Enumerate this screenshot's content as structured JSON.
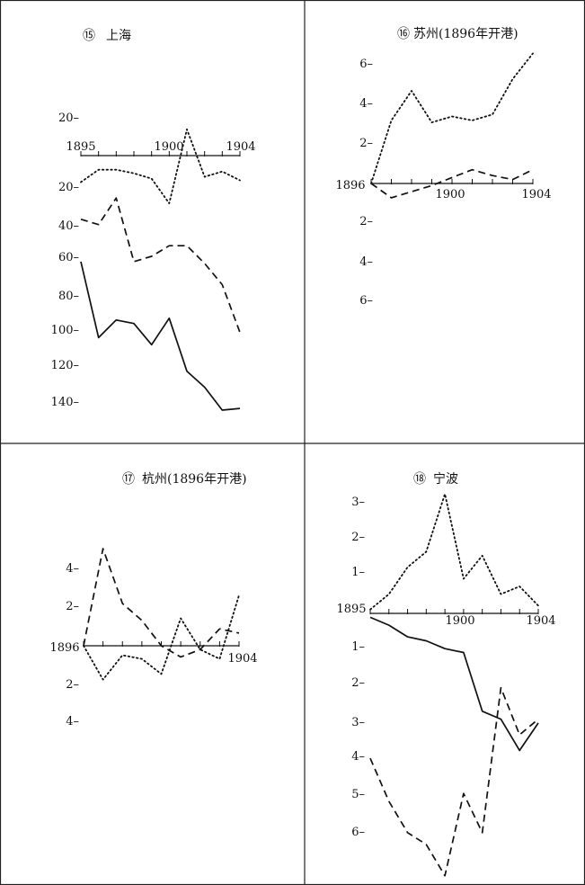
{
  "chart_data": [
    {
      "type": "line",
      "index_mark": "⑮",
      "title": "上海",
      "x_ticks": [
        "1895",
        "1900",
        "1904"
      ],
      "x": [
        1895,
        1896,
        1897,
        1898,
        1899,
        1900,
        1901,
        1902,
        1903,
        1904
      ],
      "y_axis": {
        "above": [
          "20"
        ],
        "below": [
          "20",
          "40",
          "60",
          "80",
          "100",
          "120",
          "140"
        ]
      },
      "ylim": [
        20,
        -145
      ],
      "series": [
        {
          "style": "dotted",
          "values": [
            -15,
            -8,
            -8,
            -10,
            -13,
            -27,
            8,
            -12,
            -9,
            -14
          ]
        },
        {
          "style": "dashed",
          "values": [
            -36,
            -39,
            -24,
            -60,
            -57,
            -51,
            -51,
            -61,
            -73,
            -100
          ]
        },
        {
          "style": "solid",
          "values": [
            -60,
            -103,
            -93,
            -95,
            -107,
            -92,
            -122,
            -131,
            -144,
            -143
          ]
        }
      ]
    },
    {
      "type": "line",
      "index_mark": "⑯",
      "title": "苏州(1896年开港)",
      "x_ticks": [
        "1896",
        "1900",
        "1904"
      ],
      "x": [
        1896,
        1897,
        1898,
        1899,
        1900,
        1901,
        1902,
        1903,
        1904
      ],
      "y_axis": {
        "above": [
          "6",
          "4",
          "2"
        ],
        "below": [
          "2",
          "4",
          "6"
        ]
      },
      "ylim": [
        6.8,
        -6.2
      ],
      "series": [
        {
          "style": "dotted",
          "values": [
            0,
            3.2,
            4.7,
            3.1,
            3.4,
            3.2,
            3.5,
            5.3,
            6.6
          ]
        },
        {
          "style": "dashed",
          "values": [
            0,
            -0.7,
            -0.4,
            -0.1,
            0.3,
            0.7,
            0.4,
            0.2,
            0.7
          ]
        }
      ]
    },
    {
      "type": "line",
      "index_mark": "⑰",
      "title": "杭州(1896年开港)",
      "x_ticks": [
        "1896",
        "1904"
      ],
      "x": [
        1896,
        1897,
        1898,
        1899,
        1900,
        1901,
        1902,
        1903,
        1904
      ],
      "y_axis": {
        "above": [
          "4",
          "2"
        ],
        "below": [
          "2",
          "4"
        ]
      },
      "ylim": [
        4.6,
        -4.4
      ],
      "series": [
        {
          "style": "dashed",
          "values": [
            0,
            4.6,
            2.0,
            1.2,
            0,
            -0.6,
            -0.2,
            0.8,
            0.6
          ]
        },
        {
          "style": "dotted",
          "values": [
            0,
            -1.8,
            -0.5,
            -0.7,
            -1.5,
            1.3,
            -0.2,
            -0.7,
            2.4
          ]
        }
      ]
    },
    {
      "type": "line",
      "index_mark": "⑱",
      "title": "宁波",
      "x_ticks": [
        "1895",
        "1900",
        "1904"
      ],
      "x": [
        1895,
        1896,
        1897,
        1898,
        1899,
        1900,
        1901,
        1902,
        1903,
        1904
      ],
      "y_axis": {
        "above": [
          "3",
          "2",
          "1"
        ],
        "below": [
          "1",
          "2",
          "3",
          "4",
          "5",
          "6"
        ]
      },
      "ylim": [
        3.2,
        -6.5
      ],
      "series": [
        {
          "style": "dotted",
          "values": [
            0.1,
            0.5,
            1.2,
            1.6,
            3.1,
            0.9,
            1.5,
            0.5,
            0.7,
            0.2
          ]
        },
        {
          "style": "solid",
          "values": [
            -0.1,
            -0.3,
            -0.6,
            -0.7,
            -0.9,
            -1.0,
            -2.5,
            -2.7,
            -3.5,
            -2.8
          ]
        },
        {
          "style": "dashed",
          "values": [
            -3.7,
            -4.8,
            -5.6,
            -5.9,
            -6.7,
            -4.6,
            -5.6,
            -1.9,
            -3.1,
            -2.7
          ]
        }
      ]
    }
  ]
}
